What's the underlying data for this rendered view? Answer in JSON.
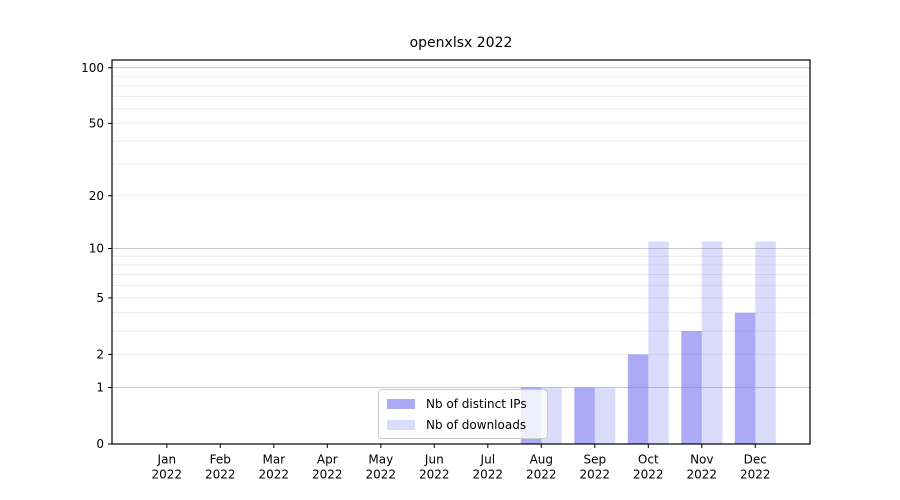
{
  "chart_data": {
    "type": "bar",
    "title": "openxlsx 2022",
    "categories": [
      "Jan",
      "Feb",
      "Mar",
      "Apr",
      "May",
      "Jun",
      "Jul",
      "Aug",
      "Sep",
      "Oct",
      "Nov",
      "Dec"
    ],
    "category_year": "2022",
    "series": [
      {
        "name": "Nb of distinct IPs",
        "values": [
          0,
          0,
          0,
          0,
          0,
          0,
          0,
          1,
          1,
          2,
          3,
          4
        ],
        "color": "#7d7df0",
        "fill_opacity": 0.65
      },
      {
        "name": "Nb of downloads",
        "values": [
          0,
          0,
          0,
          0,
          0,
          0,
          0,
          1,
          1,
          11,
          11,
          11
        ],
        "color": "#7d7df0",
        "fill_opacity": 0.28
      }
    ],
    "xlabel": "",
    "ylabel": "",
    "yscale": "log1p",
    "ylim": [
      0,
      110
    ],
    "yticks": [
      0,
      1,
      2,
      5,
      10,
      20,
      50,
      100
    ],
    "major_gridlines": [
      1,
      10,
      100
    ],
    "minor_gridlines": [
      2,
      3,
      4,
      5,
      6,
      7,
      8,
      9,
      20,
      30,
      40,
      50,
      60,
      70,
      80,
      90
    ],
    "grid": true,
    "legend_position": "inside-lower-center"
  },
  "colors": {
    "axis": "#000000",
    "major_grid": "#c8c8c8",
    "minor_grid": "#ebebeb",
    "legend_border": "#cccccc",
    "background": "#ffffff"
  }
}
